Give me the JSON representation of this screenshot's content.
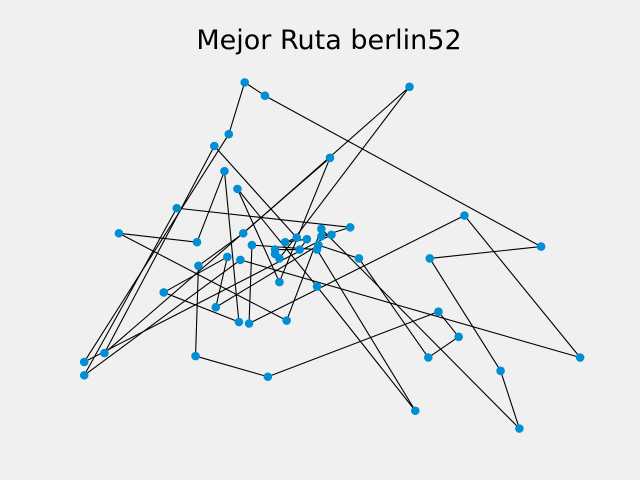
{
  "colors": {
    "background": "#f0f0f0",
    "route": "#000000",
    "city": "#008fd5"
  },
  "chart_data": {
    "type": "line",
    "title": "Mejor Ruta berlin52",
    "xlabel": "",
    "ylabel": "",
    "grid": false,
    "axes_visible": false,
    "closed_tour": true,
    "markers": "filled circles",
    "xlim": [
      0,
      1750
    ],
    "ylim": [
      0,
      1200
    ],
    "route": [
      [
        565,
        575
      ],
      [
        25,
        185
      ],
      [
        345,
        750
      ],
      [
        945,
        685
      ],
      [
        845,
        655
      ],
      [
        880,
        660
      ],
      [
        25,
        230
      ],
      [
        525,
        1000
      ],
      [
        580,
        1175
      ],
      [
        650,
        1130
      ],
      [
        1605,
        620
      ],
      [
        1220,
        580
      ],
      [
        1465,
        200
      ],
      [
        1530,
        5
      ],
      [
        845,
        680
      ],
      [
        725,
        370
      ],
      [
        145,
        665
      ],
      [
        415,
        635
      ],
      [
        510,
        875
      ],
      [
        560,
        365
      ],
      [
        300,
        465
      ],
      [
        520,
        585
      ],
      [
        480,
        415
      ],
      [
        835,
        625
      ],
      [
        975,
        580
      ],
      [
        1215,
        245
      ],
      [
        1320,
        315
      ],
      [
        1250,
        400
      ],
      [
        660,
        180
      ],
      [
        410,
        250
      ],
      [
        420,
        555
      ],
      [
        575,
        665
      ],
      [
        1150,
        1160
      ],
      [
        700,
        580
      ],
      [
        685,
        595
      ],
      [
        685,
        610
      ],
      [
        770,
        610
      ],
      [
        795,
        645
      ],
      [
        720,
        635
      ],
      [
        760,
        650
      ],
      [
        475,
        960
      ],
      [
        95,
        260
      ],
      [
        875,
        920
      ],
      [
        700,
        500
      ],
      [
        555,
        815
      ],
      [
        830,
        485
      ],
      [
        1170,
        65
      ],
      [
        830,
        610
      ],
      [
        605,
        625
      ],
      [
        595,
        360
      ],
      [
        1340,
        725
      ],
      [
        1740,
        245
      ]
    ]
  }
}
